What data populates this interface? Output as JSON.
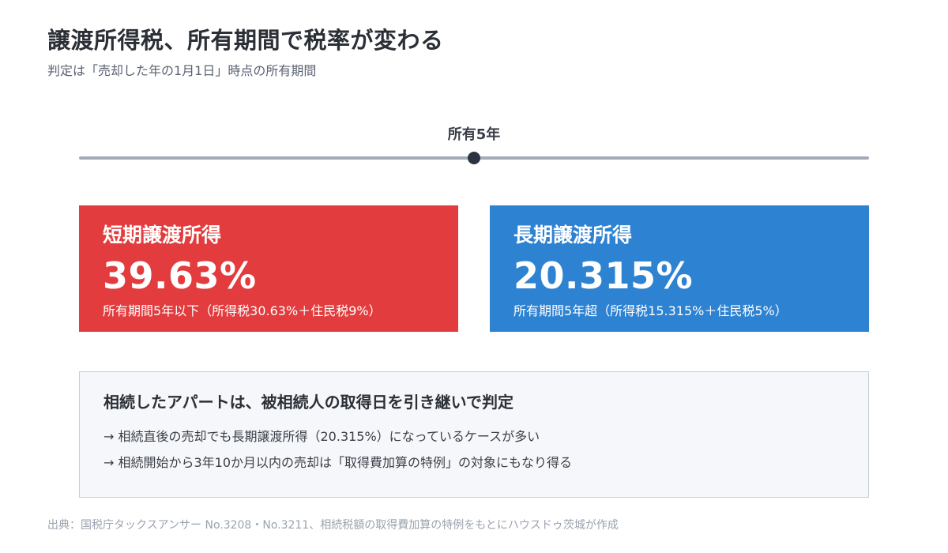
{
  "header": {
    "title": "譲渡所得税、所有期間で税率が変わる",
    "subtitle": "判定は「売却した年の1月1日」時点の所有期間"
  },
  "timeline": {
    "label": "所有5年"
  },
  "cards": [
    {
      "title": "短期譲渡所得",
      "rate": "39.63%",
      "note": "所有期間5年以下（所得税30.63%＋住民税9%）",
      "color": "#e23c3e"
    },
    {
      "title": "長期譲渡所得",
      "rate": "20.315%",
      "note": "所有期間5年超（所得税15.315%＋住民税5%）",
      "color": "#2e82d2"
    }
  ],
  "info": {
    "heading": "相続したアパートは、被相続人の取得日を引き継いで判定",
    "items": [
      "→ 相続直後の売却でも長期譲渡所得（20.315%）になっているケースが多い",
      "→ 相続開始から3年10か月以内の売却は「取得費加算の特例」の対象にもなり得る"
    ]
  },
  "source": "出典：国税庁タックスアンサー No.3208・No.3211、相続税額の取得費加算の特例をもとにハウスドゥ茨城が作成"
}
